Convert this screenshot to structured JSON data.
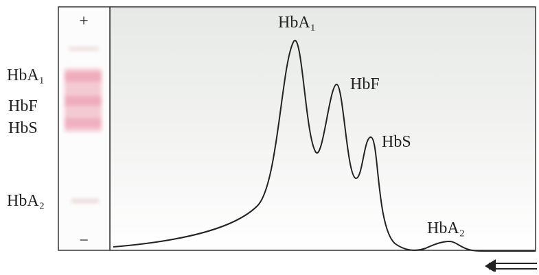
{
  "gel": {
    "plus": "+",
    "minus": "−",
    "labels": [
      "HbA₁",
      "HbF",
      "HbS",
      "HbA₂"
    ]
  },
  "trace": {
    "peaks": [
      "HbA₁",
      "HbF",
      "HbS",
      "HbA₂"
    ]
  }
}
